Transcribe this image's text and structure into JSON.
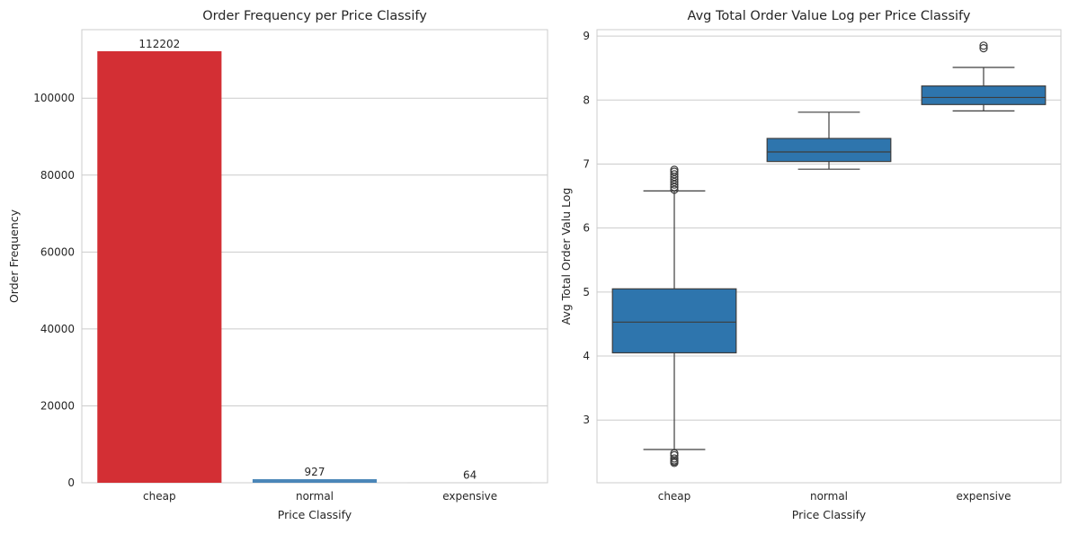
{
  "chart_data": [
    {
      "type": "bar",
      "title": "Order Frequency per Price Classify",
      "xlabel": "Price Classify",
      "ylabel": "Order Frequency",
      "categories": [
        "cheap",
        "normal",
        "expensive"
      ],
      "values": [
        112202,
        927,
        64
      ],
      "value_labels": [
        "112202",
        "927",
        "64"
      ],
      "colors": [
        "#d32f34",
        "#4a86b8",
        "#c9c9c9"
      ],
      "ylim": [
        0,
        117812
      ],
      "yticks": [
        0,
        20000,
        40000,
        60000,
        80000,
        100000
      ],
      "ytick_labels": [
        "0",
        "20000",
        "40000",
        "60000",
        "80000",
        "100000"
      ],
      "grid": true
    },
    {
      "type": "box",
      "title": "Avg Total Order Value Log per Price Classify",
      "xlabel": "Price Classify",
      "ylabel": "Avg Total Order Valu Log",
      "categories": [
        "cheap",
        "normal",
        "expensive"
      ],
      "color": "#2e75ad",
      "boxes": [
        {
          "whisker_low": 2.54,
          "q1": 4.05,
          "median": 4.53,
          "q3": 5.05,
          "whisker_high": 6.58,
          "outliers": [
            2.33,
            2.35,
            2.37,
            2.4,
            2.45,
            2.48,
            6.6,
            6.64,
            6.68,
            6.72,
            6.76,
            6.8,
            6.84,
            6.88,
            6.91
          ]
        },
        {
          "whisker_low": 6.92,
          "q1": 7.04,
          "median": 7.19,
          "q3": 7.4,
          "whisker_high": 7.81,
          "outliers": []
        },
        {
          "whisker_low": 7.83,
          "q1": 7.93,
          "median": 8.04,
          "q3": 8.22,
          "whisker_high": 8.51,
          "outliers": [
            8.81,
            8.85
          ]
        }
      ],
      "ylim": [
        2.02,
        9.1
      ],
      "yticks": [
        3,
        4,
        5,
        6,
        7,
        8,
        9
      ],
      "ytick_labels": [
        "3",
        "4",
        "5",
        "6",
        "7",
        "8",
        "9"
      ],
      "grid": true
    }
  ]
}
